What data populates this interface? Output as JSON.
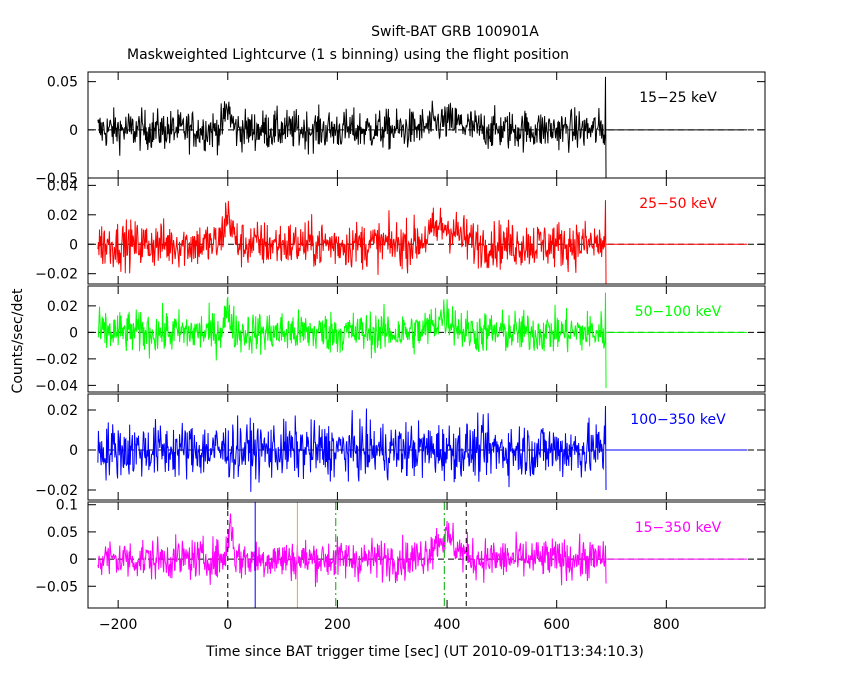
{
  "chart_data": {
    "type": "line",
    "title": "Swift-BAT GRB 100901A",
    "subtitle": "Maskweighted Lightcurve (1 s binning) using the flight position",
    "xlabel": "Time since BAT trigger time [sec] (UT 2010-09-01T13:34:10.3)",
    "ylabel": "Counts/sec/det",
    "xlim": [
      -255,
      980
    ],
    "xticks": [
      -200,
      0,
      200,
      400,
      600,
      800
    ],
    "xtick_labels": [
      "−200",
      "0",
      "200",
      "400",
      "600",
      "800"
    ],
    "data_range": [
      -237,
      690
    ],
    "grid": false,
    "panels": [
      {
        "label": "15−25 keV",
        "color": "#000000",
        "ylim": [
          -0.05,
          0.06
        ],
        "yticks": [
          0.05,
          0,
          -0.05
        ],
        "ytick_labels": [
          "0.05",
          "0",
          "−0.05"
        ],
        "noise": 0.011,
        "features": [
          [
            0,
            0.022,
            8
          ],
          [
            400,
            0.008,
            40
          ]
        ],
        "end_spike": [
          0.055,
          -0.05
        ]
      },
      {
        "label": "25−50 keV",
        "color": "#ff0000",
        "ylim": [
          -0.027,
          0.045
        ],
        "yticks": [
          0.04,
          0.02,
          0,
          -0.02
        ],
        "ytick_labels": [
          "0.04",
          "0.02",
          "0",
          "−0.02"
        ],
        "noise": 0.0085,
        "features": [
          [
            0,
            0.02,
            10
          ],
          [
            395,
            0.012,
            35
          ]
        ],
        "end_spike": [
          0.03,
          -0.027
        ]
      },
      {
        "label": "50−100 keV",
        "color": "#00ff00",
        "ylim": [
          -0.045,
          0.035
        ],
        "yticks": [
          0.02,
          0,
          -0.02,
          -0.04
        ],
        "ytick_labels": [
          "0.02",
          "0",
          "−0.02",
          "−0.04"
        ],
        "noise": 0.0085,
        "features": [
          [
            0,
            0.014,
            10
          ],
          [
            395,
            0.012,
            25
          ]
        ],
        "end_spike": [
          0.03,
          -0.042
        ]
      },
      {
        "label": "100−350 keV",
        "color": "#0000ff",
        "ylim": [
          -0.025,
          0.028
        ],
        "yticks": [
          0.02,
          0,
          -0.02
        ],
        "ytick_labels": [
          "0.02",
          "0",
          "−0.02"
        ],
        "noise": 0.0075,
        "features": [],
        "end_spike": [
          0.022,
          -0.02
        ]
      },
      {
        "label": "15−350 keV",
        "color": "#ff00ff",
        "ylim": [
          -0.09,
          0.105
        ],
        "yticks": [
          0.1,
          0.05,
          0,
          -0.05
        ],
        "ytick_labels": [
          "0.1",
          "0.05",
          "0",
          "−0.05"
        ],
        "noise": 0.02,
        "features": [
          [
            5,
            0.065,
            6
          ],
          [
            395,
            0.04,
            30
          ]
        ],
        "end_spike": [
          0.025,
          -0.045
        ]
      }
    ],
    "markers": [
      {
        "x": 0,
        "color": "#000000",
        "style": "dashed"
      },
      {
        "x": 50,
        "color": "#0000ff",
        "style": "solid"
      },
      {
        "x": 127,
        "color": "#ffa500",
        "style": "solid"
      },
      {
        "x": 197,
        "color": "#00aa00",
        "style": "dashdot"
      },
      {
        "x": 395,
        "color": "#00aa00",
        "style": "dashdot"
      },
      {
        "x": 435,
        "color": "#000000",
        "style": "dashed"
      }
    ]
  }
}
